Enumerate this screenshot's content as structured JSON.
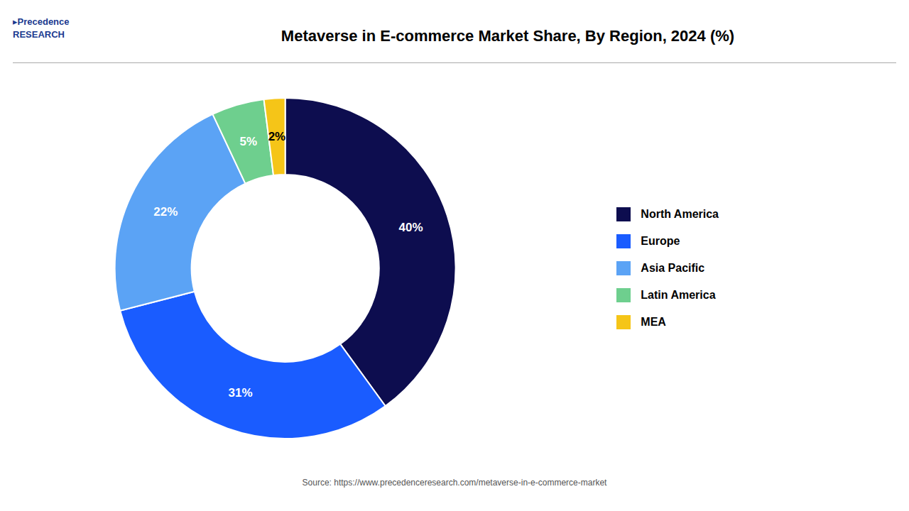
{
  "chart_data": {
    "type": "pie",
    "title": "Metaverse in E-commerce Market Share, By Region, 2024 (%)",
    "categories": [
      "North America",
      "Europe",
      "Asia Pacific",
      "Latin America",
      "MEA"
    ],
    "values": [
      40,
      31,
      22,
      5,
      2
    ],
    "value_labels": [
      "40%",
      "31%",
      "22%",
      "5%",
      "2%"
    ],
    "colors": [
      "#0d0d4f",
      "#1a5cff",
      "#5ba3f5",
      "#6ecf8e",
      "#f5c518"
    ],
    "data_labels": true,
    "legend": "right",
    "annotations": [
      "Source: https://www.precedenceresearch.com/metaverse-in-e-commerce-market",
      "▸Precedence\nRESEARCH"
    ]
  }
}
